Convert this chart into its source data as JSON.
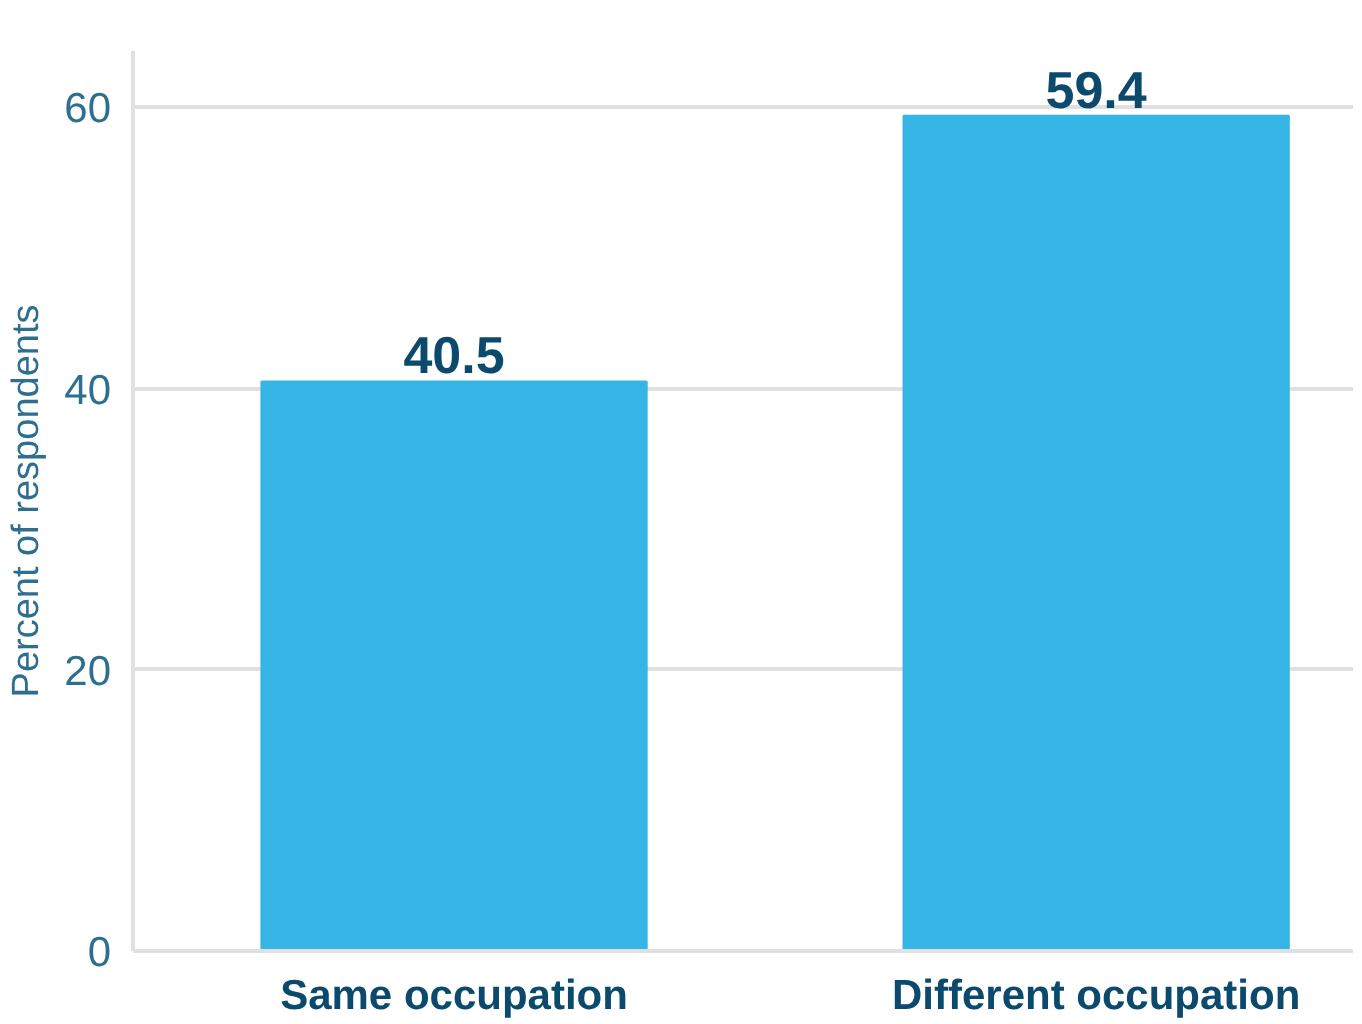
{
  "chart_data": {
    "type": "bar",
    "ylabel": "Percent of respondents",
    "categories": [
      "Same occupation",
      "Different occupation"
    ],
    "values": [
      40.5,
      59.4
    ],
    "color": "#35b5e5",
    "ylim": [
      0,
      64
    ],
    "yticks": [
      0,
      20,
      40,
      60
    ],
    "grid": "y",
    "data_labels": true
  }
}
